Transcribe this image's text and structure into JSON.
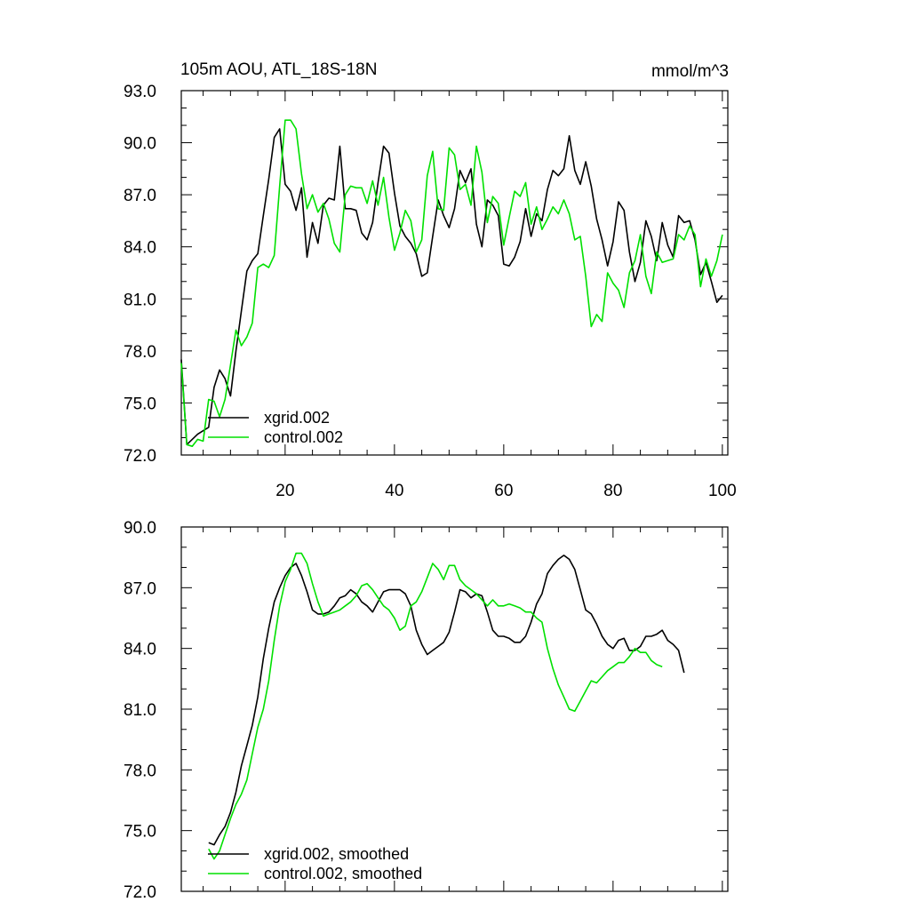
{
  "chart_data": [
    {
      "type": "line",
      "title": "105m AOU, ATL_18S-18N",
      "units": "mmol/m^3",
      "xlim": [
        1,
        101
      ],
      "ylim": [
        72,
        93
      ],
      "xticks": [
        20,
        40,
        60,
        80,
        100
      ],
      "yticks": [
        "72.0",
        "75.0",
        "78.0",
        "81.0",
        "84.0",
        "87.0",
        "90.0",
        "93.0"
      ],
      "x_start": 1,
      "series": [
        {
          "name": "xgrid.002",
          "color": "#000000",
          "values": [
            77.5,
            72.6,
            72.9,
            73.2,
            73.4,
            73.6,
            75.9,
            76.9,
            76.4,
            75.4,
            78.0,
            80.3,
            82.6,
            83.2,
            83.6,
            85.8,
            87.9,
            90.3,
            90.8,
            87.6,
            87.2,
            86.1,
            87.4,
            83.4,
            85.4,
            84.2,
            86.4,
            86.8,
            86.7,
            89.8,
            86.2,
            86.2,
            86.1,
            84.8,
            84.4,
            85.4,
            87.7,
            89.8,
            89.4,
            87.1,
            85.2,
            84.6,
            84.2,
            83.6,
            82.3,
            82.5,
            84.6,
            86.7,
            85.8,
            85.1,
            86.2,
            88.4,
            87.7,
            88.5,
            85.3,
            84.0,
            86.7,
            86.4,
            85.8,
            83.0,
            82.9,
            83.4,
            84.3,
            86.2,
            84.6,
            85.9,
            85.5,
            87.3,
            88.4,
            88.1,
            88.5,
            90.4,
            88.4,
            87.6,
            88.9,
            87.5,
            85.6,
            84.4,
            82.9,
            84.3,
            86.6,
            86.1,
            83.7,
            82.0,
            83.1,
            85.5,
            84.6,
            83.2,
            85.4,
            84.1,
            83.4,
            85.8,
            85.4,
            85.5,
            84.4,
            82.4,
            83.1,
            82.0,
            80.8,
            81.2
          ]
        },
        {
          "name": "control.002",
          "color": "#00e000",
          "values": [
            77.3,
            72.6,
            72.5,
            72.9,
            72.8,
            75.2,
            75.1,
            74.2,
            75.2,
            77.2,
            79.2,
            78.3,
            78.8,
            79.6,
            82.8,
            83.0,
            82.8,
            83.5,
            87.5,
            91.3,
            91.3,
            90.8,
            88.2,
            86.2,
            87.0,
            86.0,
            86.5,
            85.6,
            84.2,
            83.7,
            87.0,
            87.5,
            87.4,
            87.4,
            86.5,
            87.8,
            86.4,
            88.0,
            85.7,
            83.8,
            84.8,
            86.1,
            85.5,
            83.7,
            84.4,
            88.1,
            89.5,
            86.2,
            86.1,
            89.7,
            89.3,
            87.3,
            87.6,
            86.4,
            89.8,
            88.3,
            85.4,
            86.9,
            86.5,
            84.1,
            85.7,
            87.2,
            86.9,
            87.7,
            85.3,
            86.3,
            85.0,
            85.6,
            86.3,
            85.9,
            86.7,
            85.9,
            84.4,
            84.6,
            82.3,
            79.4,
            80.1,
            79.7,
            82.5,
            81.9,
            81.5,
            80.5,
            82.5,
            83.2,
            84.7,
            82.3,
            81.3,
            83.7,
            83.1,
            83.2,
            83.3,
            84.7,
            84.4,
            85.2,
            84.7,
            81.7,
            83.3,
            82.3,
            83.2,
            84.7
          ]
        }
      ],
      "legend": "bottom-left",
      "grid": false
    },
    {
      "type": "line",
      "xlim": [
        1,
        101
      ],
      "ylim": [
        72,
        90
      ],
      "xticks": [
        20,
        40,
        60,
        80,
        100
      ],
      "yticks": [
        "72.0",
        "75.0",
        "78.0",
        "81.0",
        "84.0",
        "87.0",
        "90.0"
      ],
      "x_start": 6,
      "series": [
        {
          "name": "xgrid.002, smoothed",
          "color": "#000000",
          "values": [
            74.4,
            74.3,
            74.8,
            75.2,
            75.9,
            76.9,
            78.2,
            79.2,
            80.2,
            81.6,
            83.5,
            85.0,
            86.3,
            87.0,
            87.6,
            88.0,
            88.2,
            87.6,
            86.8,
            85.9,
            85.7,
            85.7,
            85.8,
            86.1,
            86.5,
            86.6,
            86.9,
            86.7,
            86.3,
            86.1,
            85.8,
            86.3,
            86.8,
            86.9,
            86.9,
            86.9,
            86.7,
            86.1,
            84.9,
            84.2,
            83.7,
            83.9,
            84.1,
            84.3,
            84.8,
            85.8,
            86.9,
            86.8,
            86.5,
            86.7,
            86.6,
            85.8,
            84.9,
            84.6,
            84.6,
            84.5,
            84.3,
            84.3,
            84.6,
            85.3,
            86.2,
            86.7,
            87.7,
            88.1,
            88.4,
            88.6,
            88.4,
            87.9,
            86.9,
            85.9,
            85.7,
            85.2,
            84.6,
            84.2,
            84.0,
            84.4,
            84.5,
            83.9,
            83.9,
            84.1,
            84.6,
            84.6,
            84.7,
            84.9,
            84.4,
            84.2,
            83.9,
            82.8
          ]
        },
        {
          "name": "control.002, smoothed",
          "color": "#00e000",
          "values": [
            74.1,
            73.6,
            74.0,
            74.8,
            75.6,
            76.3,
            76.8,
            77.5,
            78.8,
            80.1,
            81.0,
            82.4,
            84.4,
            86.1,
            87.3,
            87.9,
            88.7,
            88.7,
            88.2,
            87.2,
            86.3,
            85.6,
            85.7,
            85.8,
            85.9,
            86.1,
            86.3,
            86.6,
            87.1,
            87.2,
            86.9,
            86.5,
            86.1,
            85.9,
            85.5,
            84.9,
            85.1,
            86.1,
            86.3,
            86.8,
            87.5,
            88.2,
            87.9,
            87.4,
            88.1,
            88.1,
            87.4,
            87.1,
            86.9,
            86.7,
            86.4,
            86.1,
            86.4,
            86.1,
            86.1,
            86.2,
            86.1,
            86.0,
            85.8,
            85.8,
            85.5,
            85.3,
            84.0,
            83.0,
            82.2,
            81.6,
            81.0,
            80.9,
            81.4,
            81.9,
            82.4,
            82.3,
            82.6,
            82.9,
            83.1,
            83.3,
            83.3,
            83.6,
            84.0,
            83.8,
            83.8,
            83.4,
            83.2,
            83.1
          ]
        }
      ],
      "legend": "bottom-left",
      "grid": false
    }
  ]
}
